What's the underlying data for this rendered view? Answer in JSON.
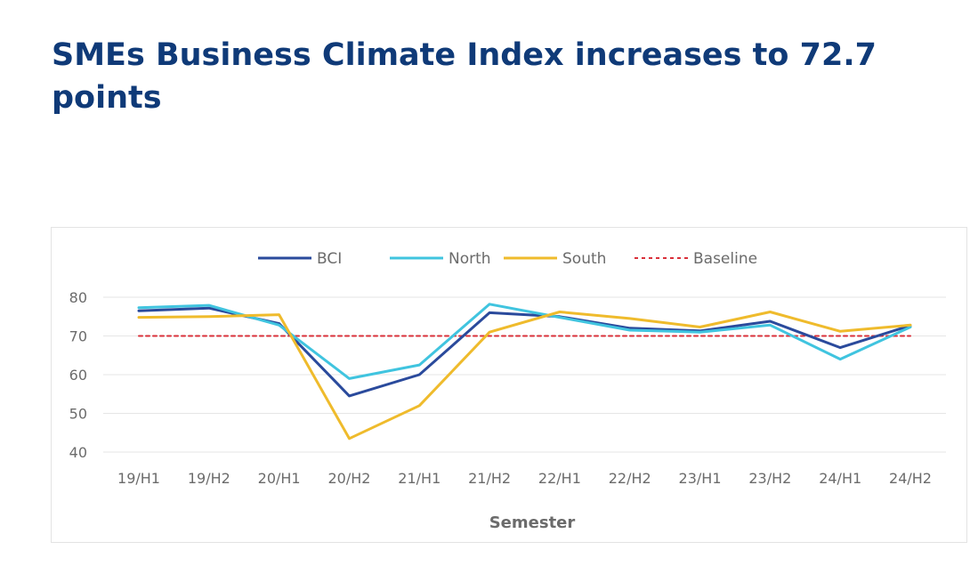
{
  "headline": "SMEs Business Climate Index increases to 72.7 points",
  "chart_data": {
    "type": "line",
    "categories": [
      "19/H1",
      "19/H2",
      "20/H1",
      "20/H2",
      "21/H1",
      "21/H2",
      "22/H1",
      "22/H2",
      "23/H1",
      "23/H2",
      "24/H1",
      "24/H2"
    ],
    "series": [
      {
        "name": "BCI",
        "color": "#2a4a9c",
        "dash": false,
        "values": [
          76.5,
          77.2,
          73.2,
          54.5,
          60.0,
          76.0,
          75.0,
          72.0,
          71.3,
          73.8,
          67.0,
          72.7
        ]
      },
      {
        "name": "North",
        "color": "#40c4df",
        "dash": false,
        "values": [
          77.3,
          77.9,
          72.8,
          59.0,
          62.5,
          78.2,
          74.8,
          71.5,
          71.0,
          72.8,
          64.0,
          72.3
        ]
      },
      {
        "name": "South",
        "color": "#efbb2c",
        "dash": false,
        "values": [
          74.8,
          75.0,
          75.5,
          43.5,
          52.0,
          71.0,
          76.2,
          74.5,
          72.3,
          76.2,
          71.2,
          72.8
        ]
      },
      {
        "name": "Baseline",
        "color": "#d9303a",
        "dash": true,
        "values": [
          70,
          70,
          70,
          70,
          70,
          70,
          70,
          70,
          70,
          70,
          70,
          70
        ]
      }
    ],
    "title": "",
    "xlabel": "Semester",
    "ylabel": "",
    "ylim": [
      40,
      80
    ],
    "yticks": [
      40,
      50,
      60,
      70,
      80
    ],
    "grid": true,
    "legend": "top"
  }
}
